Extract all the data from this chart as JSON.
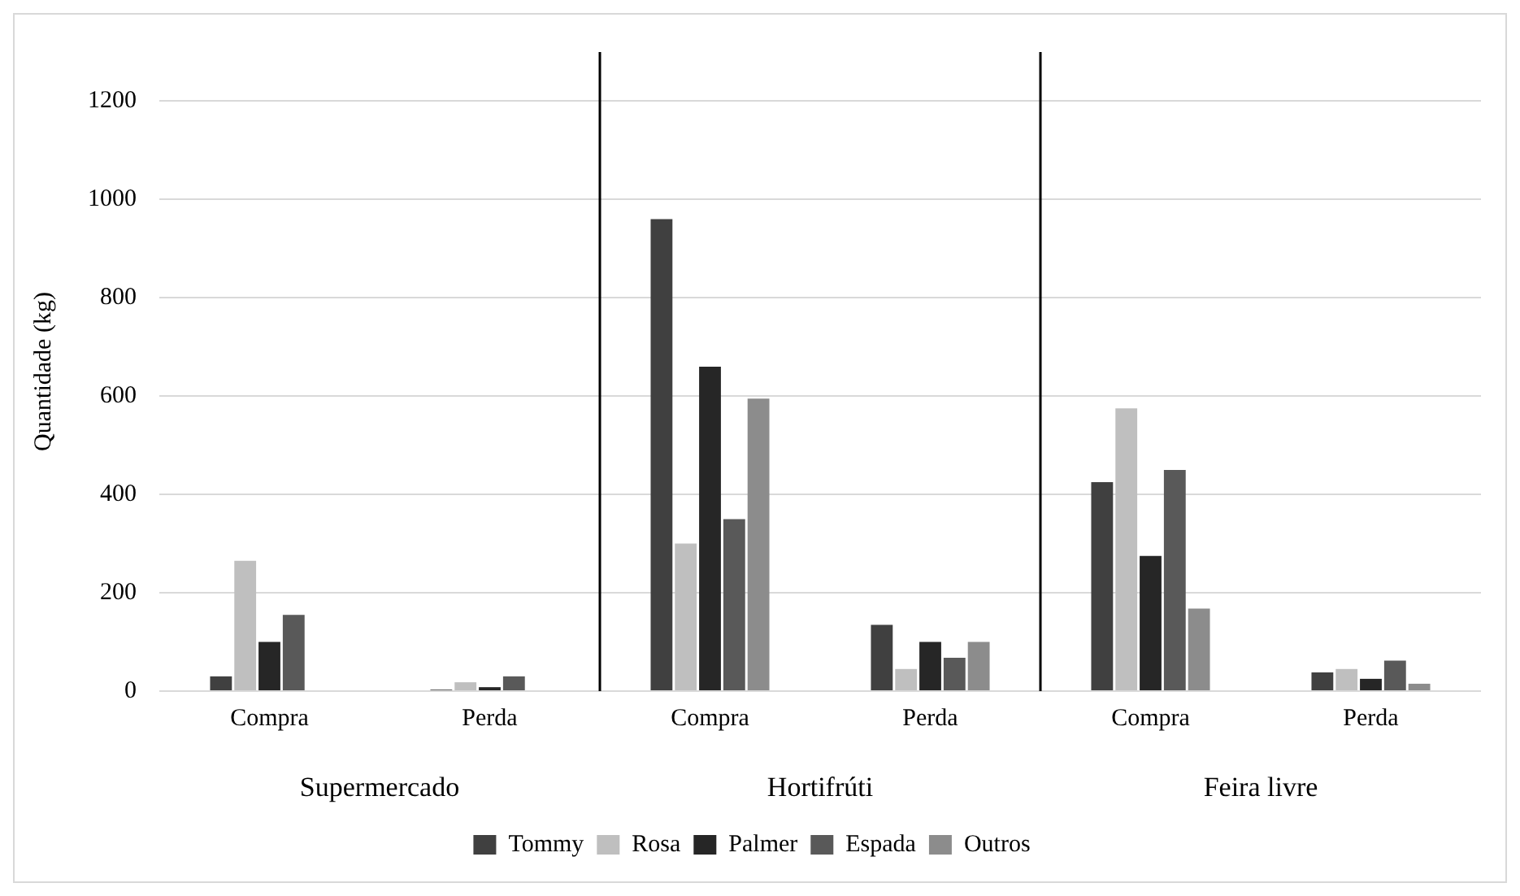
{
  "chart_data": {
    "type": "bar",
    "ylabel": "Quantidade (kg)",
    "categories": [
      "Compra",
      "Perda",
      "Compra",
      "Perda",
      "Compra",
      "Perda"
    ],
    "series": [
      {
        "name": "Tommy",
        "color": "#404040",
        "values": [
          30,
          3,
          960,
          135,
          425,
          38
        ]
      },
      {
        "name": "Rosa",
        "color": "#bfbfbf",
        "values": [
          265,
          18,
          300,
          45,
          575,
          45
        ]
      },
      {
        "name": "Palmer",
        "color": "#262626",
        "values": [
          100,
          8,
          660,
          100,
          275,
          25
        ]
      },
      {
        "name": "Espada",
        "color": "#595959",
        "values": [
          155,
          30,
          350,
          68,
          450,
          62
        ]
      },
      {
        "name": "Outros",
        "color": "#8c8c8c",
        "values": [
          0,
          0,
          595,
          100,
          168,
          15
        ]
      }
    ],
    "annotations": [
      "Supermercado",
      "Hortifrúti",
      "Feira livre"
    ],
    "ylim": [
      0,
      1300
    ],
    "yticks": [
      0,
      200,
      400,
      600,
      800,
      1000,
      1200
    ],
    "grid": "y",
    "legend": "bottom"
  }
}
